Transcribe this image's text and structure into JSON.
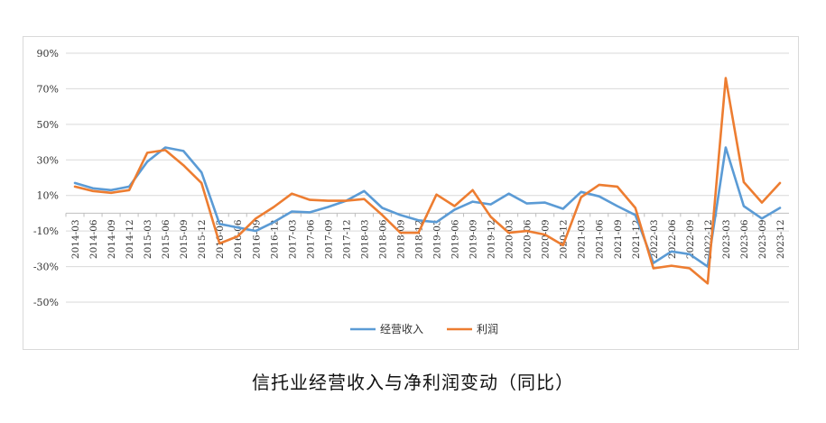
{
  "chart_data": {
    "type": "line",
    "title": "信托业经营收入与净利润变动（同比）",
    "xlabel": "",
    "ylabel": "",
    "ylim": [
      -50,
      90
    ],
    "yticks": [
      90,
      70,
      50,
      30,
      10,
      -10,
      -30,
      -50
    ],
    "ytick_labels": [
      "90%",
      "70%",
      "50%",
      "30%",
      "10%",
      "-10%",
      "-30%",
      "-50%"
    ],
    "grid": "horizontal",
    "legend_position": "bottom-center",
    "categories": [
      "2014-03",
      "2014-06",
      "2014-09",
      "2014-12",
      "2015-03",
      "2015-06",
      "2015-09",
      "2015-12",
      "2016-03",
      "2016-06",
      "2016-09",
      "2016-12",
      "2017-03",
      "2017-06",
      "2017-09",
      "2017-12",
      "2018-03",
      "2018-06",
      "2018-09",
      "2018-12",
      "2019-03",
      "2019-06",
      "2019-09",
      "2019-12",
      "2020-03",
      "2020-06",
      "2020-09",
      "2020-12",
      "2021-03",
      "2021-06",
      "2021-09",
      "2021-12",
      "2022-03",
      "2022-06",
      "2022-09",
      "2022-12",
      "2023-03",
      "2023-06",
      "2023-09",
      "2023-12"
    ],
    "series": [
      {
        "name": "经营收入",
        "color": "#5B9BD5",
        "values": [
          17,
          14,
          13,
          15,
          29,
          37,
          35,
          23,
          -6,
          -8,
          -10,
          -5,
          1,
          0.5,
          3.5,
          7,
          12.5,
          3,
          -1,
          -4,
          -5,
          2,
          6.5,
          5,
          11,
          5.5,
          6,
          2.5,
          12,
          9.5,
          4,
          -1,
          -28,
          -21.5,
          -23,
          -30,
          37,
          4,
          -3,
          3
        ]
      },
      {
        "name": "利润",
        "color": "#ED7D31",
        "values": [
          15,
          12.5,
          11.5,
          13,
          34,
          35.5,
          27,
          17,
          -17,
          -13,
          -3,
          3.5,
          11,
          7.5,
          7,
          7,
          8,
          -1,
          -11,
          -11,
          10.5,
          4,
          13,
          -2,
          -11,
          -10,
          -12,
          -18,
          9,
          16,
          15,
          3,
          -31,
          -29.5,
          -31,
          -39.5,
          76,
          17.5,
          6,
          17
        ]
      }
    ]
  }
}
